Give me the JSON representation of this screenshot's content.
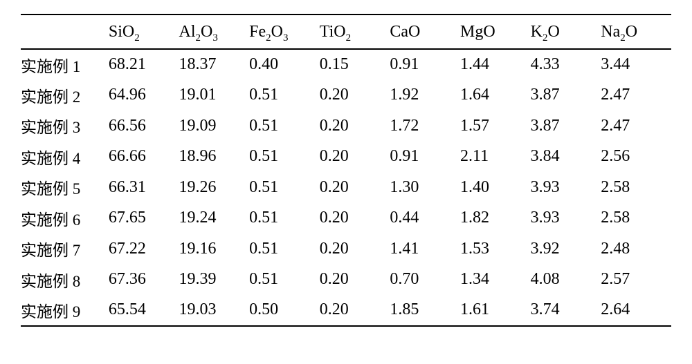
{
  "table": {
    "type": "table",
    "background_color": "#ffffff",
    "text_color": "#000000",
    "border_color": "#000000",
    "header_fontsize": 24,
    "body_fontsize": 24,
    "columns": [
      {
        "label": "",
        "html": ""
      },
      {
        "label": "SiO2",
        "html": "SiO<sub>2</sub>"
      },
      {
        "label": "Al2O3",
        "html": "Al<sub>2</sub>O<sub>3</sub>"
      },
      {
        "label": "Fe2O3",
        "html": "Fe<sub>2</sub>O<sub>3</sub>"
      },
      {
        "label": "TiO2",
        "html": "TiO<sub>2</sub>"
      },
      {
        "label": "CaO",
        "html": "CaO"
      },
      {
        "label": "MgO",
        "html": "MgO"
      },
      {
        "label": "K2O",
        "html": "K<sub>2</sub>O"
      },
      {
        "label": "Na2O",
        "html": "Na<sub>2</sub>O"
      }
    ],
    "rows": [
      {
        "label": "实施例 1",
        "values": [
          "68.21",
          "18.37",
          "0.40",
          "0.15",
          "0.91",
          "1.44",
          "4.33",
          "3.44"
        ]
      },
      {
        "label": "实施例 2",
        "values": [
          "64.96",
          "19.01",
          "0.51",
          "0.20",
          "1.92",
          "1.64",
          "3.87",
          "2.47"
        ]
      },
      {
        "label": "实施例 3",
        "values": [
          "66.56",
          "19.09",
          "0.51",
          "0.20",
          "1.72",
          "1.57",
          "3.87",
          "2.47"
        ]
      },
      {
        "label": "实施例 4",
        "values": [
          "66.66",
          "18.96",
          "0.51",
          "0.20",
          "0.91",
          "2.11",
          "3.84",
          "2.56"
        ]
      },
      {
        "label": "实施例 5",
        "values": [
          "66.31",
          "19.26",
          "0.51",
          "0.20",
          "1.30",
          "1.40",
          "3.93",
          "2.58"
        ]
      },
      {
        "label": "实施例 6",
        "values": [
          "67.65",
          "19.24",
          "0.51",
          "0.20",
          "0.44",
          "1.82",
          "3.93",
          "2.58"
        ]
      },
      {
        "label": "实施例 7",
        "values": [
          "67.22",
          "19.16",
          "0.51",
          "0.20",
          "1.41",
          "1.53",
          "3.92",
          "2.48"
        ]
      },
      {
        "label": "实施例 8",
        "values": [
          "67.36",
          "19.39",
          "0.51",
          "0.20",
          "0.70",
          "1.34",
          "4.08",
          "2.57"
        ]
      },
      {
        "label": "实施例 9",
        "values": [
          "65.54",
          "19.03",
          "0.50",
          "0.20",
          "1.85",
          "1.61",
          "3.74",
          "2.64"
        ]
      }
    ]
  }
}
